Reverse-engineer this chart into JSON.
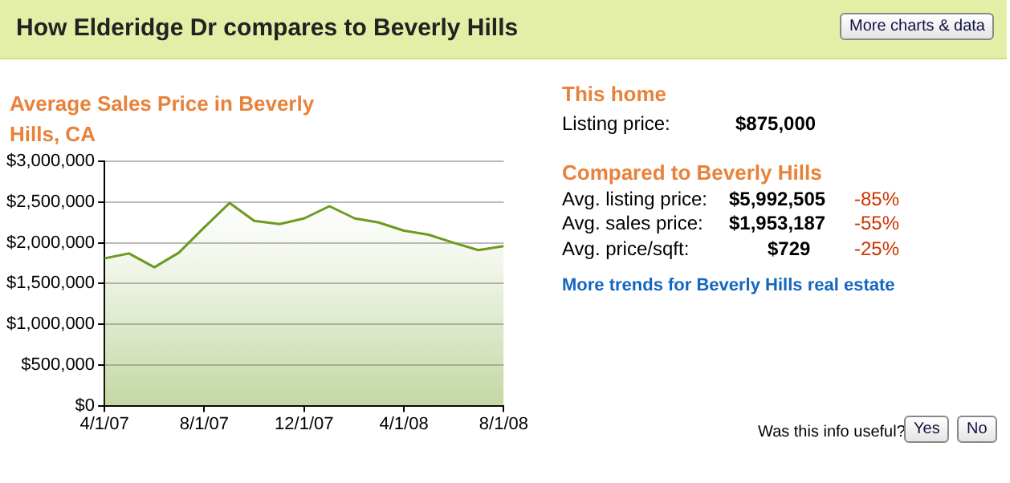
{
  "chart_data": {
    "type": "area",
    "title": "How Elderidge Dr compares to Beverly Hills",
    "subtitle": "Average Sales Price in Beverly Hills, CA",
    "x": [
      "2007-04-01",
      "2007-05-01",
      "2007-06-01",
      "2007-07-01",
      "2007-08-01",
      "2007-09-01",
      "2007-10-01",
      "2007-11-01",
      "2007-12-01",
      "2008-01-01",
      "2008-02-01",
      "2008-03-01",
      "2008-04-01",
      "2008-05-01",
      "2008-06-01",
      "2008-07-01",
      "2008-08-01"
    ],
    "series": [
      {
        "color": "#6b9b1e",
        "values": [
          1810000,
          1870000,
          1700000,
          1880000,
          2190000,
          2490000,
          2270000,
          2230000,
          2300000,
          2450000,
          2300000,
          2250000,
          2150000,
          2100000,
          2000000,
          1910000,
          1960000
        ]
      }
    ],
    "xlim": [
      "2007-04-01",
      "2008-08-01"
    ],
    "xticks": [
      {
        "value": "2007-04-01",
        "label": "4/1/07"
      },
      {
        "value": "2007-08-01",
        "label": "8/1/07"
      },
      {
        "value": "2007-12-01",
        "label": "12/1/07"
      },
      {
        "value": "2008-04-01",
        "label": "4/1/08"
      },
      {
        "value": "2008-08-01",
        "label": "8/1/08"
      }
    ],
    "ylim": [
      0,
      3000000
    ],
    "yticks": [
      {
        "value": 0,
        "label": "$0"
      },
      {
        "value": 500000,
        "label": "$500,000"
      },
      {
        "value": 1000000,
        "label": "$1,000,000"
      },
      {
        "value": 1500000,
        "label": "$1,500,000"
      },
      {
        "value": 2000000,
        "label": "$2,000,000"
      },
      {
        "value": 2500000,
        "label": "$2,500,000"
      },
      {
        "value": 3000000,
        "label": "$3,000,000"
      }
    ],
    "grid": "y",
    "legend": false,
    "marker": "none",
    "line_style": "solid",
    "annotations": [
      "More charts & data",
      "This home",
      "Listing price:",
      "$875,000",
      "Compared to Beverly Hills",
      "Avg. listing price:",
      "$5,992,505",
      "-85%",
      "Avg. sales price:",
      "$1,953,187",
      "-55%",
      "Avg. price/sqft:",
      "$729",
      "-25%",
      "More trends for Beverly Hills real estate",
      "Was this info useful?",
      "Yes",
      "No"
    ]
  }
}
